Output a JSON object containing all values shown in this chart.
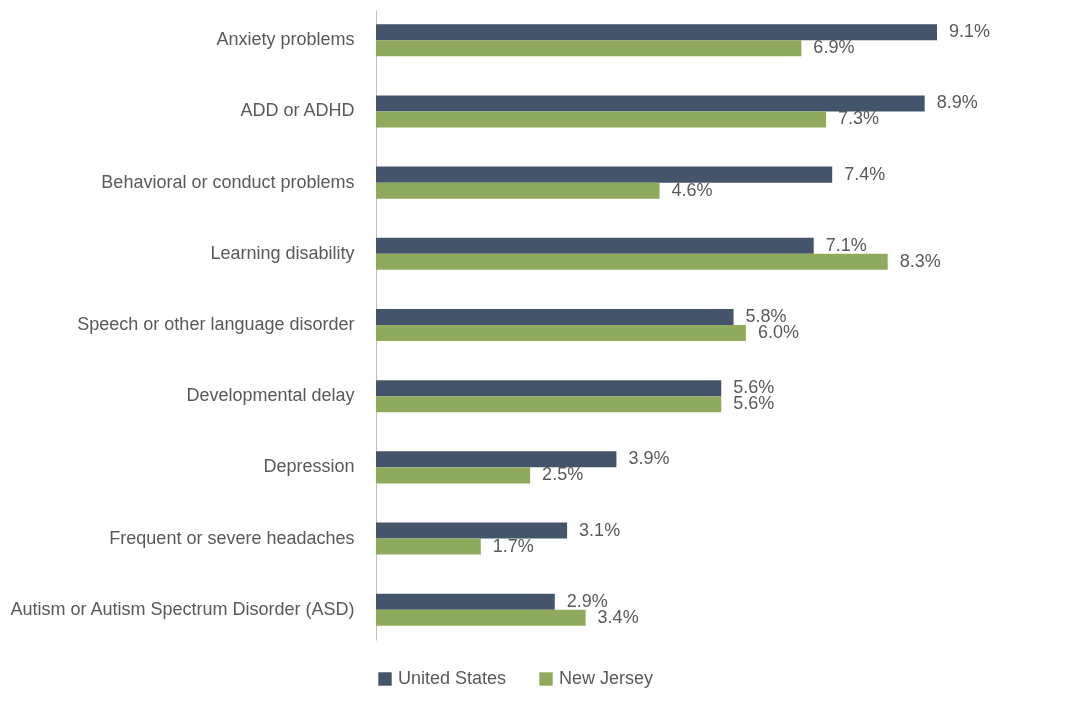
{
  "chart_data": {
    "type": "bar",
    "orientation": "horizontal",
    "categories": [
      "Anxiety problems",
      "ADD or ADHD",
      "Behavioral or conduct problems",
      "Learning disability",
      "Speech or other language disorder",
      "Developmental delay",
      "Depression",
      "Frequent or severe headaches",
      "Autism or Autism Spectrum Disorder (ASD)"
    ],
    "series": [
      {
        "name": "United States",
        "color": "#44546a",
        "values": [
          9.1,
          8.9,
          7.4,
          7.1,
          5.8,
          5.6,
          3.9,
          3.1,
          2.9
        ],
        "value_labels": [
          "9.1%",
          "8.9%",
          "7.4%",
          "7.1%",
          "5.8%",
          "5.6%",
          "3.9%",
          "3.1%",
          "2.9%"
        ]
      },
      {
        "name": "New Jersey",
        "color": "#8faa5c",
        "values": [
          6.9,
          7.3,
          4.6,
          8.3,
          6.0,
          5.6,
          2.5,
          1.7,
          3.4
        ],
        "value_labels": [
          "6.9%",
          "7.3%",
          "4.6%",
          "8.3%",
          "6.0%",
          "5.6%",
          "2.5%",
          "1.7%",
          "3.4%"
        ]
      }
    ],
    "legend": "bottom"
  }
}
